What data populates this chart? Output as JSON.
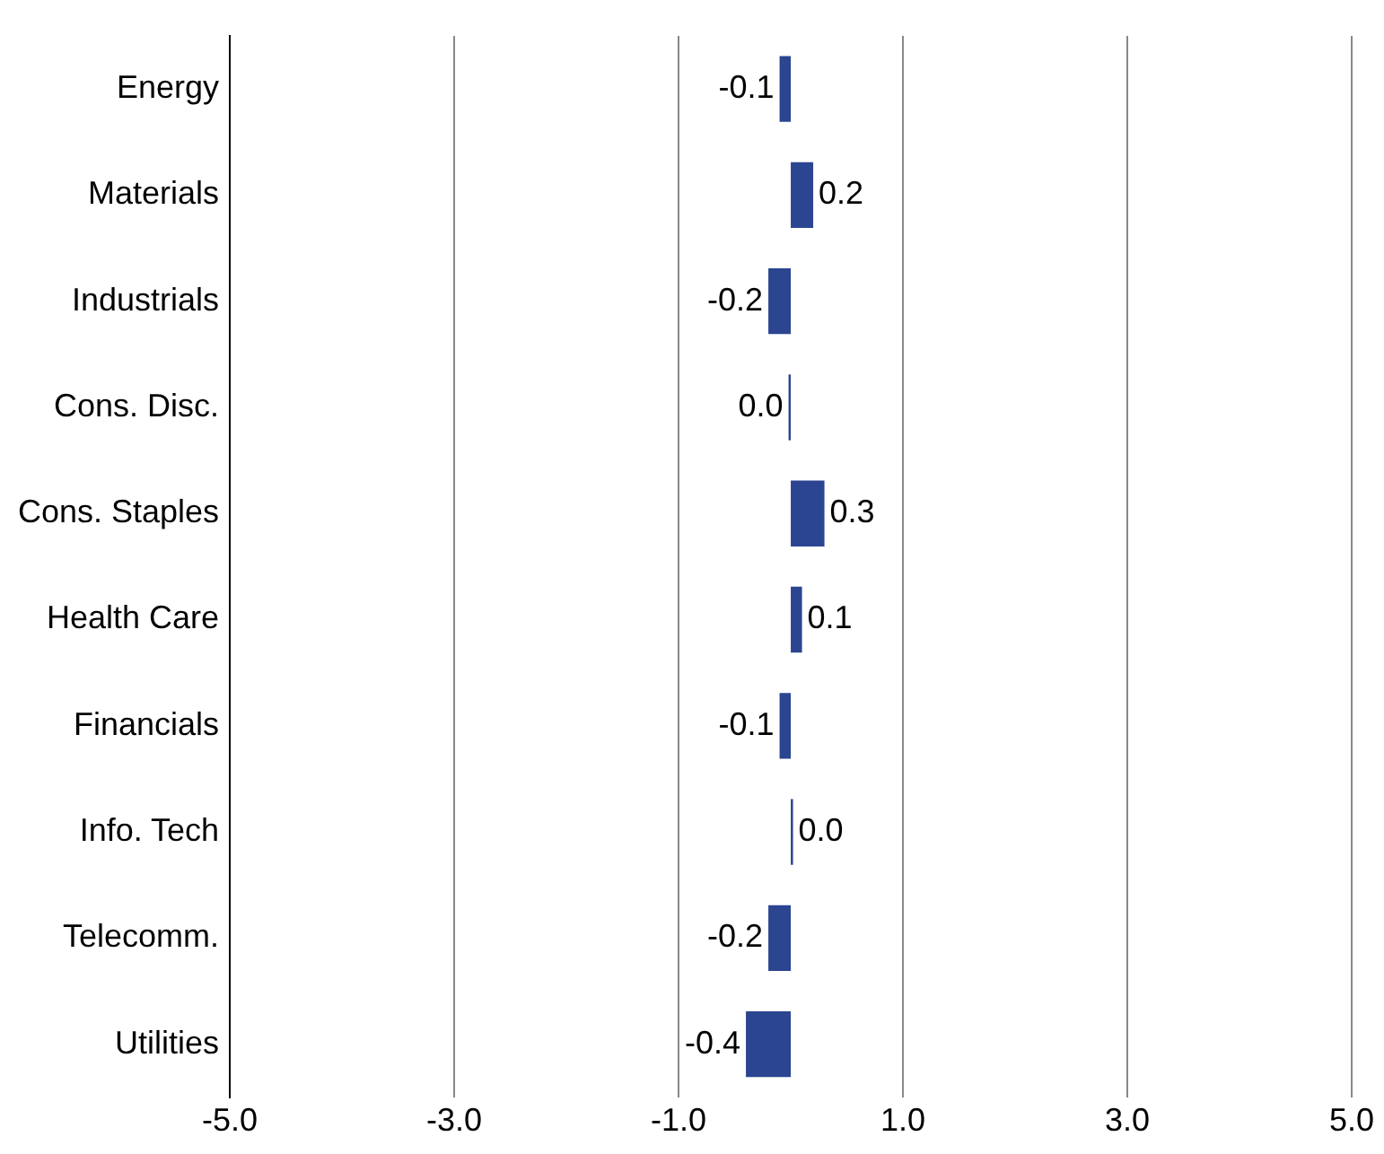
{
  "chart_data": {
    "type": "bar",
    "orientation": "horizontal",
    "categories": [
      "Energy",
      "Materials",
      "Industrials",
      "Cons. Disc.",
      "Cons. Staples",
      "Health Care",
      "Financials",
      "Info. Tech",
      "Telecomm.",
      "Utilities"
    ],
    "values": [
      -0.1,
      0.2,
      -0.2,
      -0.02,
      0.3,
      0.1,
      -0.1,
      0.02,
      -0.2,
      -0.4
    ],
    "value_labels": [
      "-0.1",
      "0.2",
      "-0.2",
      "0.0",
      "0.3",
      "0.1",
      "-0.1",
      "0.0",
      "-0.2",
      "-0.4"
    ],
    "color": "#2b4590",
    "xlim": [
      -5,
      5
    ],
    "xticks": [
      {
        "value": -5,
        "label": "-5.0"
      },
      {
        "value": -3,
        "label": "-3.0"
      },
      {
        "value": -1,
        "label": "-1.0"
      },
      {
        "value": 1,
        "label": "1.0"
      },
      {
        "value": 3,
        "label": "3.0"
      },
      {
        "value": 5,
        "label": "5.0"
      }
    ],
    "grid": "x",
    "legend": false
  }
}
